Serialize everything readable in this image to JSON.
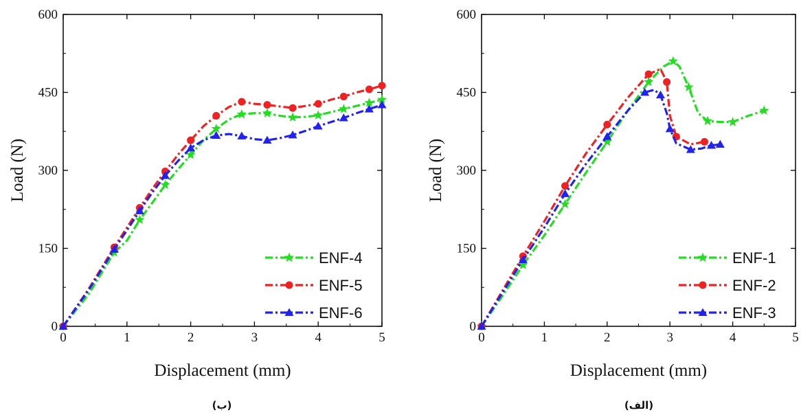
{
  "chart_data": [
    {
      "type": "line",
      "caption": "(ب)",
      "xlabel": "Displacement (mm)",
      "ylabel": "Load (N)",
      "xlim": [
        0,
        5
      ],
      "ylim": [
        0,
        600
      ],
      "xticks": [
        0,
        1,
        2,
        3,
        4,
        5
      ],
      "yticks": [
        0,
        150,
        300,
        450,
        600
      ],
      "legend_position": "bottom-right",
      "series": [
        {
          "name": "ENF-4",
          "color": "#22dd22",
          "marker": "star",
          "x": [
            0,
            0.4,
            0.8,
            1.0,
            1.2,
            1.4,
            1.6,
            1.8,
            2.0,
            2.2,
            2.4,
            2.6,
            2.8,
            3.0,
            3.2,
            3.4,
            3.6,
            3.8,
            4.0,
            4.2,
            4.4,
            4.6,
            4.8,
            5.0
          ],
          "y": [
            0,
            62,
            142,
            165,
            205,
            238,
            272,
            302,
            330,
            358,
            380,
            398,
            408,
            410,
            410,
            405,
            402,
            403,
            406,
            412,
            418,
            424,
            430,
            436
          ]
        },
        {
          "name": "ENF-5",
          "color": "#ee2222",
          "marker": "circle",
          "x": [
            0,
            0.4,
            0.8,
            1.0,
            1.2,
            1.4,
            1.6,
            1.8,
            2.0,
            2.2,
            2.4,
            2.6,
            2.8,
            3.0,
            3.2,
            3.4,
            3.6,
            3.8,
            4.0,
            4.2,
            4.4,
            4.6,
            4.8,
            5.0
          ],
          "y": [
            0,
            72,
            152,
            190,
            228,
            265,
            298,
            330,
            358,
            385,
            405,
            422,
            432,
            428,
            426,
            423,
            420,
            424,
            428,
            436,
            442,
            450,
            456,
            463
          ]
        },
        {
          "name": "ENF-6",
          "color": "#2222ee",
          "marker": "triangle",
          "x": [
            0,
            0.4,
            0.8,
            1.0,
            1.2,
            1.4,
            1.6,
            1.8,
            2.0,
            2.2,
            2.4,
            2.6,
            2.8,
            3.0,
            3.2,
            3.4,
            3.6,
            3.8,
            4.0,
            4.2,
            4.4,
            4.6,
            4.8,
            5.0
          ],
          "y": [
            0,
            70,
            148,
            185,
            222,
            258,
            290,
            318,
            343,
            358,
            367,
            370,
            366,
            360,
            358,
            362,
            368,
            376,
            385,
            393,
            401,
            410,
            418,
            426
          ]
        }
      ]
    },
    {
      "type": "line",
      "caption": "(الف)",
      "xlabel": "Displacement (mm)",
      "ylabel": "Load (N)",
      "xlim": [
        0,
        5
      ],
      "ylim": [
        0,
        600
      ],
      "xticks": [
        0,
        1,
        2,
        3,
        4,
        5
      ],
      "yticks": [
        0,
        150,
        300,
        450,
        600
      ],
      "legend_position": "bottom-right",
      "series": [
        {
          "name": "ENF-1",
          "color": "#22dd22",
          "marker": "star",
          "x": [
            0,
            0.33,
            0.66,
            1.0,
            1.33,
            1.66,
            2.0,
            2.33,
            2.66,
            2.9,
            3.05,
            3.15,
            3.3,
            3.45,
            3.6,
            3.8,
            4.0,
            4.2,
            4.5
          ],
          "y": [
            0,
            58,
            118,
            175,
            235,
            295,
            355,
            415,
            470,
            500,
            510,
            500,
            460,
            410,
            395,
            393,
            393,
            403,
            415
          ]
        },
        {
          "name": "ENF-2",
          "color": "#ee2222",
          "marker": "circle",
          "x": [
            0,
            0.33,
            0.66,
            1.0,
            1.33,
            1.66,
            2.0,
            2.33,
            2.66,
            2.85,
            2.95,
            3.0,
            3.1,
            3.33,
            3.55
          ],
          "y": [
            0,
            68,
            135,
            202,
            270,
            332,
            388,
            440,
            485,
            495,
            470,
            405,
            365,
            350,
            355
          ]
        },
        {
          "name": "ENF-3",
          "color": "#2222ee",
          "marker": "triangle",
          "x": [
            0,
            0.33,
            0.66,
            1.0,
            1.33,
            1.66,
            2.0,
            2.33,
            2.6,
            2.75,
            2.85,
            2.95,
            3.0,
            3.1,
            3.33,
            3.5,
            3.66,
            3.8
          ],
          "y": [
            0,
            64,
            128,
            190,
            255,
            312,
            365,
            415,
            450,
            455,
            445,
            410,
            380,
            352,
            340,
            342,
            348,
            350
          ]
        }
      ]
    }
  ]
}
